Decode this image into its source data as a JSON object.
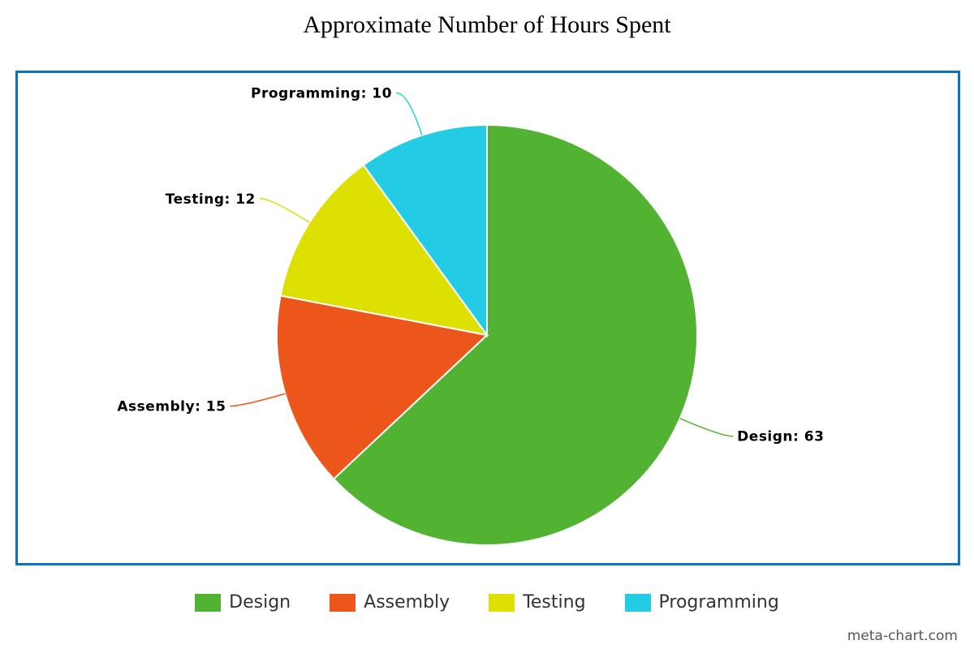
{
  "chart_data": {
    "type": "pie",
    "title": "Approximate Number of Hours Spent",
    "categories": [
      "Design",
      "Assembly",
      "Testing",
      "Programming"
    ],
    "values": [
      63,
      15,
      12,
      10
    ],
    "colors": [
      "#52b332",
      "#ec561b",
      "#dde000",
      "#24cbe5"
    ],
    "data_labels": [
      "Design: 63",
      "Assembly: 15",
      "Testing: 12",
      "Programming: 10"
    ],
    "legend_position": "bottom"
  },
  "credit": "meta-chart.com"
}
